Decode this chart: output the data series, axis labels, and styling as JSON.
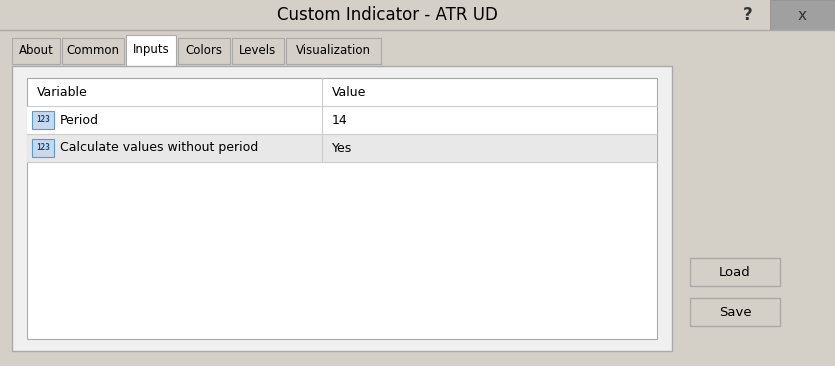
{
  "title": "Custom Indicator - ATR UD",
  "bg_color": "#d4d0c8",
  "title_text_color": "#000000",
  "tabs": [
    "About",
    "Common",
    "Inputs",
    "Colors",
    "Levels",
    "Visualization"
  ],
  "active_tab": "Inputs",
  "table_headers": [
    "Variable",
    "Value"
  ],
  "rows": [
    {
      "variable": "Period",
      "value": "14",
      "row_bg": "#ffffff"
    },
    {
      "variable": "Calculate values without period",
      "value": "Yes",
      "row_bg": "#e8e8e8"
    }
  ],
  "buttons": [
    "Load",
    "Save"
  ],
  "figsize": [
    8.35,
    3.66
  ],
  "dpi": 100,
  "tab_widths": [
    48,
    62,
    50,
    52,
    52,
    95
  ]
}
